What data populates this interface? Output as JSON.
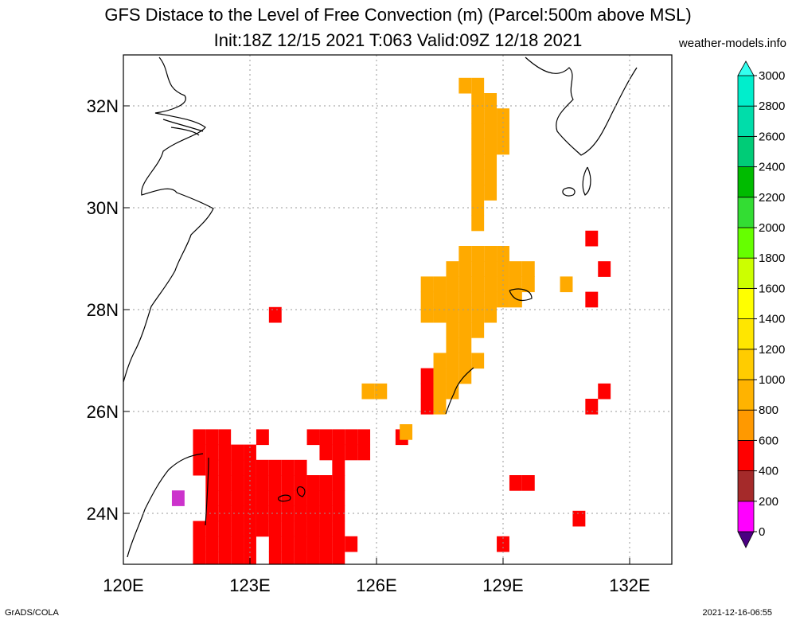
{
  "title_line1": "GFS Distace to the Level of Free Convection (m) (Parcel:500m above MSL)",
  "title_line2": "Init:18Z 12/15 2021 T:063 Valid:09Z 12/18 2021",
  "site": "weather-models.info",
  "credit": "GrADS/COLA",
  "timestamp": "2021-12-16-06:55",
  "map": {
    "lon_range": [
      120,
      133
    ],
    "lat_range": [
      23,
      33
    ],
    "lon_ticks": [
      {
        "value": 120,
        "label": "120E"
      },
      {
        "value": 123,
        "label": "123E"
      },
      {
        "value": 126,
        "label": "126E"
      },
      {
        "value": 129,
        "label": "129E"
      },
      {
        "value": 132,
        "label": "132E"
      }
    ],
    "lat_ticks": [
      {
        "value": 24,
        "label": "24N"
      },
      {
        "value": 26,
        "label": "26N"
      },
      {
        "value": 28,
        "label": "28N"
      },
      {
        "value": 30,
        "label": "30N"
      },
      {
        "value": 32,
        "label": "32N"
      }
    ],
    "grid": true
  },
  "colorbar": {
    "levels": [
      "0",
      "200",
      "400",
      "600",
      "800",
      "1000",
      "1200",
      "1400",
      "1600",
      "1800",
      "2000",
      "2200",
      "2400",
      "2600",
      "2800",
      "3000"
    ],
    "colors": [
      "#4b0082",
      "#ff00ff",
      "#a52a2a",
      "#ff0000",
      "#ff9900",
      "#ffb300",
      "#ffcc00",
      "#ffe600",
      "#ffff00",
      "#ccff00",
      "#66ff00",
      "#33dd33",
      "#00bb00",
      "#00cc77",
      "#00ddaa",
      "#00eecc",
      "#33ffee"
    ]
  },
  "fields": [
    {
      "name": "red-patch",
      "color": "#ff0000",
      "cells": [
        [
          121.8,
          25.5
        ],
        [
          122.1,
          25.5
        ],
        [
          122.4,
          25.5
        ],
        [
          123.3,
          25.5
        ],
        [
          124.5,
          25.5
        ],
        [
          124.8,
          25.5
        ],
        [
          125.1,
          25.5
        ],
        [
          125.4,
          25.5
        ],
        [
          125.7,
          25.5
        ],
        [
          121.8,
          25.2
        ],
        [
          122.1,
          25.2
        ],
        [
          122.4,
          25.2
        ],
        [
          122.7,
          25.2
        ],
        [
          123.0,
          25.2
        ],
        [
          124.8,
          25.2
        ],
        [
          125.1,
          25.2
        ],
        [
          125.4,
          25.2
        ],
        [
          121.8,
          24.9
        ],
        [
          122.1,
          24.9
        ],
        [
          122.4,
          24.9
        ],
        [
          122.7,
          24.9
        ],
        [
          123.0,
          24.9
        ],
        [
          123.3,
          24.9
        ],
        [
          123.6,
          24.9
        ],
        [
          123.9,
          24.9
        ],
        [
          124.2,
          24.9
        ],
        [
          125.1,
          24.9
        ],
        [
          122.1,
          24.6
        ],
        [
          122.4,
          24.6
        ],
        [
          122.7,
          24.6
        ],
        [
          123.0,
          24.6
        ],
        [
          123.3,
          24.6
        ],
        [
          123.6,
          24.6
        ],
        [
          123.9,
          24.6
        ],
        [
          124.2,
          24.6
        ],
        [
          124.5,
          24.6
        ],
        [
          124.8,
          24.6
        ],
        [
          125.1,
          24.6
        ],
        [
          122.1,
          24.3
        ],
        [
          122.4,
          24.3
        ],
        [
          122.7,
          24.3
        ],
        [
          123.0,
          24.3
        ],
        [
          123.3,
          24.3
        ],
        [
          123.6,
          24.3
        ],
        [
          123.9,
          24.3
        ],
        [
          124.2,
          24.3
        ],
        [
          124.5,
          24.3
        ],
        [
          124.8,
          24.3
        ],
        [
          125.1,
          24.3
        ],
        [
          122.1,
          24.0
        ],
        [
          122.4,
          24.0
        ],
        [
          122.7,
          24.0
        ],
        [
          123.0,
          24.0
        ],
        [
          123.3,
          24.0
        ],
        [
          123.6,
          24.0
        ],
        [
          123.9,
          24.0
        ],
        [
          124.2,
          24.0
        ],
        [
          124.5,
          24.0
        ],
        [
          124.8,
          24.0
        ],
        [
          125.1,
          24.0
        ],
        [
          121.8,
          23.7
        ],
        [
          122.1,
          23.7
        ],
        [
          122.4,
          23.7
        ],
        [
          122.7,
          23.7
        ],
        [
          123.0,
          23.7
        ],
        [
          123.3,
          23.7
        ],
        [
          123.6,
          23.7
        ],
        [
          123.9,
          23.7
        ],
        [
          124.2,
          23.7
        ],
        [
          124.5,
          23.7
        ],
        [
          124.8,
          23.7
        ],
        [
          125.1,
          23.7
        ],
        [
          121.8,
          23.4
        ],
        [
          122.1,
          23.4
        ],
        [
          122.4,
          23.4
        ],
        [
          122.7,
          23.4
        ],
        [
          123.0,
          23.4
        ],
        [
          123.6,
          23.4
        ],
        [
          123.9,
          23.4
        ],
        [
          124.2,
          23.4
        ],
        [
          124.5,
          23.4
        ],
        [
          124.8,
          23.4
        ],
        [
          125.1,
          23.4
        ],
        [
          121.8,
          23.1
        ],
        [
          122.1,
          23.1
        ],
        [
          122.4,
          23.1
        ],
        [
          122.7,
          23.1
        ],
        [
          123.0,
          23.1
        ],
        [
          123.6,
          23.1
        ],
        [
          123.9,
          23.1
        ],
        [
          124.2,
          23.1
        ],
        [
          124.5,
          23.1
        ],
        [
          124.8,
          23.1
        ],
        [
          125.1,
          23.1
        ],
        [
          125.4,
          23.4
        ],
        [
          123.6,
          27.9
        ],
        [
          126.6,
          25.5
        ],
        [
          127.2,
          26.4
        ],
        [
          127.2,
          26.7
        ],
        [
          127.2,
          26.1
        ],
        [
          129.3,
          24.6
        ],
        [
          129.6,
          24.6
        ],
        [
          130.8,
          23.9
        ],
        [
          129.0,
          23.4
        ],
        [
          131.1,
          29.4
        ],
        [
          131.1,
          28.2
        ],
        [
          131.1,
          26.1
        ],
        [
          131.4,
          26.4
        ],
        [
          131.4,
          28.8
        ],
        [
          125.7,
          25.2
        ]
      ]
    },
    {
      "name": "orange-patch",
      "color": "#ffaa00",
      "cells": [
        [
          128.1,
          32.4
        ],
        [
          128.4,
          32.4
        ],
        [
          128.4,
          32.1
        ],
        [
          128.7,
          32.1
        ],
        [
          128.4,
          31.8
        ],
        [
          128.7,
          31.8
        ],
        [
          129.0,
          31.8
        ],
        [
          128.4,
          31.5
        ],
        [
          128.7,
          31.5
        ],
        [
          129.0,
          31.5
        ],
        [
          128.4,
          31.2
        ],
        [
          128.7,
          31.2
        ],
        [
          129.0,
          31.2
        ],
        [
          128.4,
          30.9
        ],
        [
          128.7,
          30.9
        ],
        [
          128.4,
          30.6
        ],
        [
          128.7,
          30.6
        ],
        [
          128.4,
          30.3
        ],
        [
          128.7,
          30.3
        ],
        [
          128.4,
          30.0
        ],
        [
          128.4,
          29.7
        ],
        [
          128.1,
          29.1
        ],
        [
          128.4,
          29.1
        ],
        [
          128.7,
          29.1
        ],
        [
          129.0,
          29.1
        ],
        [
          127.8,
          28.8
        ],
        [
          128.1,
          28.8
        ],
        [
          128.4,
          28.8
        ],
        [
          128.7,
          28.8
        ],
        [
          129.0,
          28.8
        ],
        [
          129.3,
          28.8
        ],
        [
          129.6,
          28.8
        ],
        [
          127.2,
          28.5
        ],
        [
          127.5,
          28.5
        ],
        [
          127.8,
          28.5
        ],
        [
          128.1,
          28.5
        ],
        [
          128.4,
          28.5
        ],
        [
          128.7,
          28.5
        ],
        [
          129.0,
          28.5
        ],
        [
          129.3,
          28.5
        ],
        [
          129.6,
          28.5
        ],
        [
          127.2,
          28.2
        ],
        [
          127.5,
          28.2
        ],
        [
          127.8,
          28.2
        ],
        [
          128.1,
          28.2
        ],
        [
          128.4,
          28.2
        ],
        [
          128.7,
          28.2
        ],
        [
          129.0,
          28.2
        ],
        [
          129.3,
          28.2
        ],
        [
          127.2,
          27.9
        ],
        [
          127.5,
          27.9
        ],
        [
          127.8,
          27.9
        ],
        [
          128.1,
          27.9
        ],
        [
          128.4,
          27.9
        ],
        [
          128.7,
          27.9
        ],
        [
          127.8,
          27.6
        ],
        [
          128.1,
          27.6
        ],
        [
          128.4,
          27.6
        ],
        [
          127.8,
          27.3
        ],
        [
          128.1,
          27.3
        ],
        [
          127.5,
          27.0
        ],
        [
          127.8,
          27.0
        ],
        [
          128.1,
          27.0
        ],
        [
          128.4,
          27.0
        ],
        [
          127.5,
          26.7
        ],
        [
          127.8,
          26.7
        ],
        [
          128.1,
          26.7
        ],
        [
          127.5,
          26.4
        ],
        [
          127.8,
          26.4
        ],
        [
          127.5,
          26.1
        ],
        [
          125.8,
          26.4
        ],
        [
          126.1,
          26.4
        ],
        [
          130.5,
          28.5
        ],
        [
          126.7,
          25.6
        ]
      ]
    },
    {
      "name": "mixed-strip",
      "color": "#cc33cc",
      "cells": [
        [
          121.3,
          24.3
        ]
      ]
    }
  ]
}
